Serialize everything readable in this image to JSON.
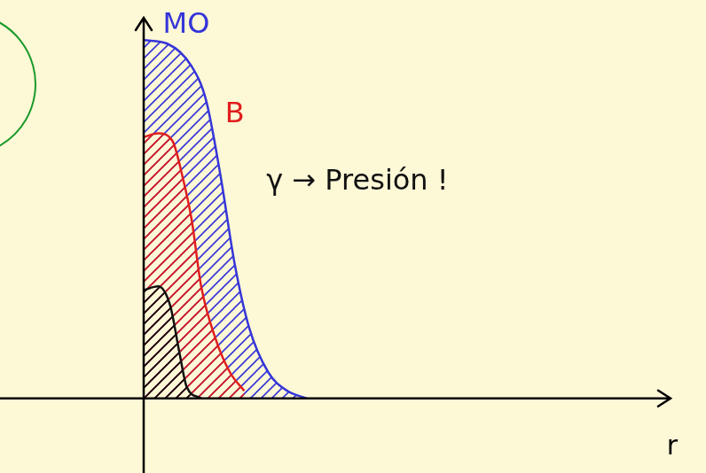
{
  "chart_data": {
    "type": "line",
    "x_label": "r",
    "xlim": [
      -3,
      11
    ],
    "ylim": [
      -2,
      10.2
    ],
    "tick_labels": false,
    "grid": false,
    "series": [
      {
        "color": "#3535d8",
        "x": [
          0,
          0.5,
          1.0,
          1.3,
          1.6,
          1.9,
          2.2,
          2.6,
          3.0,
          3.4
        ],
        "values": [
          9.6,
          9.5,
          8.9,
          8.0,
          6.0,
          3.6,
          1.9,
          0.7,
          0.2,
          0
        ]
      },
      {
        "color": "#e01e1e",
        "x": [
          0,
          0.3,
          0.6,
          0.8,
          1.0,
          1.2,
          1.5,
          1.8,
          2.1
        ],
        "values": [
          7.0,
          7.1,
          6.9,
          6.0,
          4.8,
          3.0,
          1.6,
          0.7,
          0.2
        ]
      },
      {
        "color": "#111111",
        "x": [
          0,
          0.3,
          0.55,
          0.75,
          0.9,
          1.2
        ],
        "values": [
          2.9,
          3.0,
          2.5,
          1.2,
          0.3,
          0
        ]
      }
    ],
    "annotations": [
      {
        "text": "MO",
        "x": 0.4,
        "y": 10.0,
        "color": "#3535d8"
      },
      {
        "text": "B",
        "x": 1.7,
        "y": 7.6,
        "color": "#e01e1e"
      },
      {
        "text": "γ → Presión !",
        "x": 2.56,
        "y": 5.8,
        "color": "#111111"
      }
    ]
  }
}
